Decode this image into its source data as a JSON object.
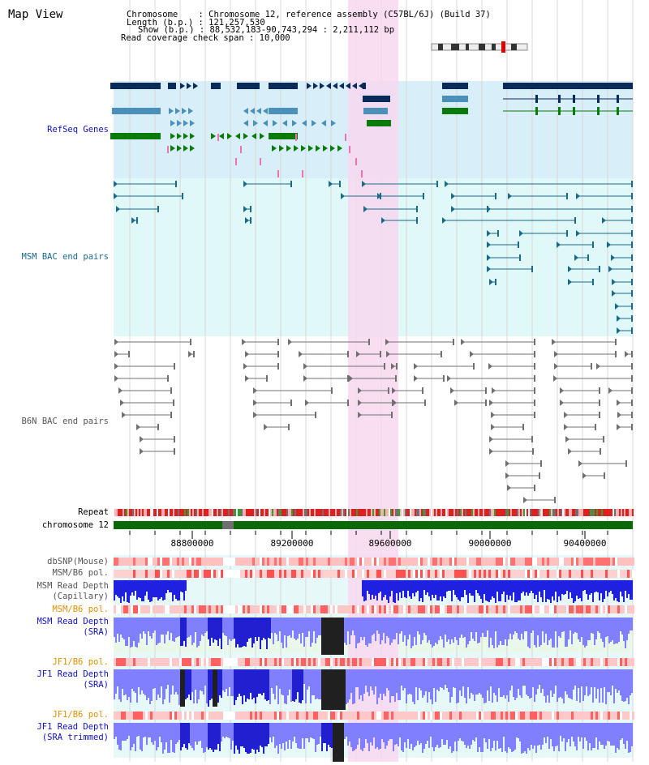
{
  "view_title": "Map View",
  "info": {
    "chromosome": "Chromosome    : Chromosome 12, reference assembly (C57BL/6J) (Build 37)",
    "length": "Length (b.p.) : 121,257,530",
    "show": "Show (b.p.) : 88,532,183-90,743,294 : 2,211,112 bp",
    "span": "Read coverage check span : 10,000"
  },
  "tracks": {
    "refseq": "RefSeq Genes",
    "msm_bac": "MSM BAC end pairs",
    "b6n_bac": "B6N BAC end pairs",
    "repeat": "Repeat",
    "chromosome": "chromosome 12",
    "dbsnp": "dbSNP(Mouse)",
    "msm_b6_pol_1": "MSM/B6 pol.",
    "msm_depth_cap_1": "MSM Read Depth",
    "msm_depth_cap_2": "(Capillary)",
    "msm_b6_pol_2": "MSM/B6 pol.",
    "msm_depth_sra_1": "MSM Read Depth",
    "msm_depth_sra_2": "(SRA)",
    "jf1_pol_1": "JF1/B6 pol.",
    "jf1_depth_1": "JF1 Read Depth",
    "jf1_depth_2": "(SRA)",
    "jf1_pol_2": "JF1/B6 pol.",
    "jf1_trim_1": "JF1 Read Depth",
    "jf1_trim_2": "(SRA trimmed)"
  },
  "axis_ticks": [
    "88800000",
    "89200000",
    "89600000",
    "90000000",
    "90400000"
  ],
  "colors": {
    "highlight": "#f8d8f0",
    "refseq_bg": "#d8eef8",
    "bac_bg": "#e0f8f8",
    "gene_dark": "#0a2a5a",
    "gene_mid": "#4a90b8",
    "gene_green": "#0a7a0a",
    "msm_line": "#1a6a8a",
    "b6n_line": "#707070",
    "chrom": "#0a6a0a",
    "depth_blue": "#2020e0",
    "depth_light": "#8080ff",
    "snp_red": "#ff6060"
  }
}
